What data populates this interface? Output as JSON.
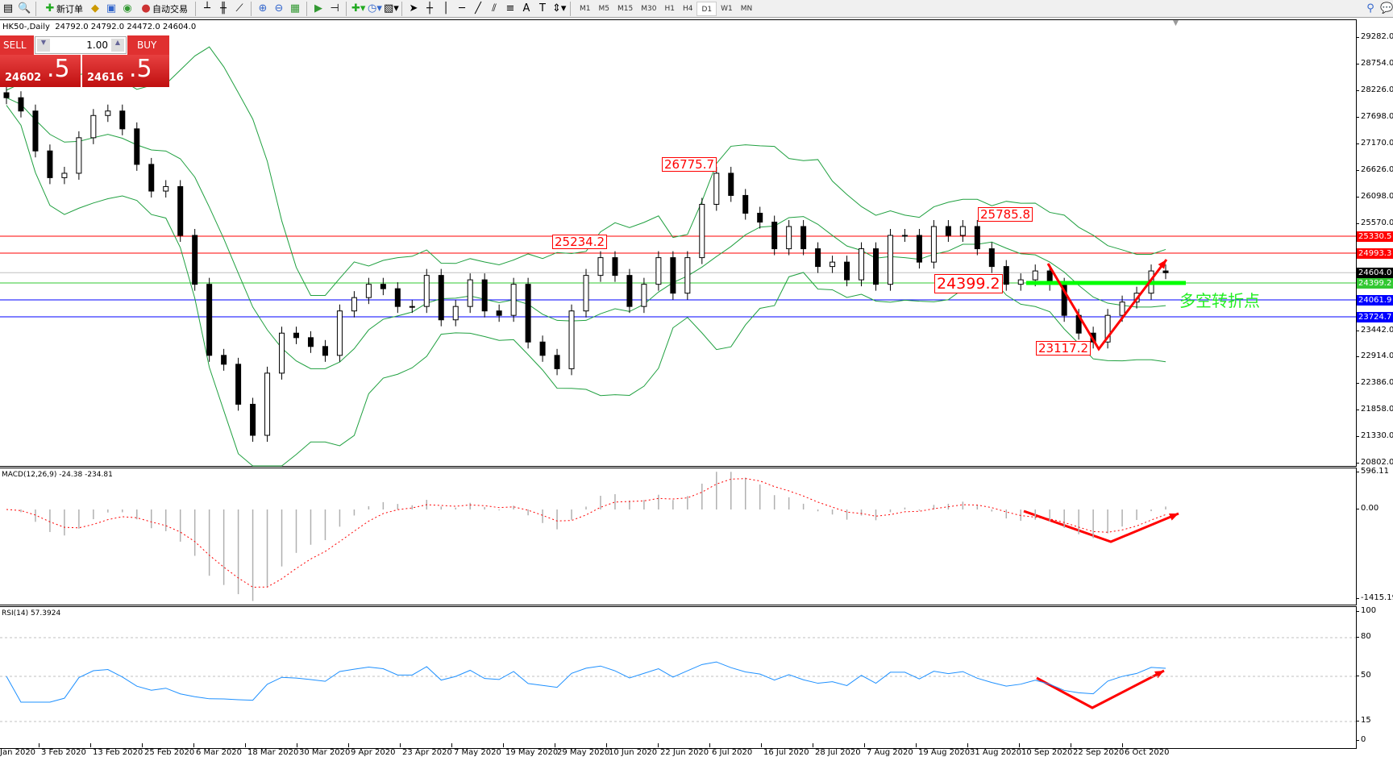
{
  "toolbar": {
    "new_order": "新订单",
    "auto_trade": "自动交易",
    "timeframes": [
      "M1",
      "M5",
      "M15",
      "M30",
      "H1",
      "H4",
      "D1",
      "W1",
      "MN"
    ],
    "active_timeframe": "D1"
  },
  "header": {
    "symbol": "HK50-,Daily",
    "ohlc": "24792.0 24792.0 24472.0 24604.0"
  },
  "trade_panel": {
    "sell_label": "SELL",
    "buy_label": "BUY",
    "lot": "1.00",
    "sell_main": "24602",
    "sell_frac": ".5",
    "buy_main": "24616",
    "buy_frac": ".5"
  },
  "price_axis": [
    "29282.0",
    "28754.0",
    "28226.0",
    "27698.0",
    "27170.0",
    "26626.0",
    "26098.0",
    "25570.0",
    "23442.0",
    "22914.0",
    "22386.0",
    "21858.0",
    "21330.0",
    "20802.0"
  ],
  "price_range": [
    20802,
    29282
  ],
  "hlines": [
    {
      "price": 25330.5,
      "label": "25330.5",
      "color": "#ff0000"
    },
    {
      "price": 24993.3,
      "label": "24993.3",
      "color": "#ff0000"
    },
    {
      "price": 24604.0,
      "label": "24604.0",
      "color": "#000000",
      "line": "#c0c0c0"
    },
    {
      "price": 24399.2,
      "label": "24399.2",
      "color": "#32c832"
    },
    {
      "price": 24061.9,
      "label": "24061.9",
      "color": "#0000ff"
    },
    {
      "price": 23724.7,
      "label": "23724.7",
      "color": "#0000ff"
    }
  ],
  "annotations": {
    "high1": "26775.7",
    "high2": "25785.8",
    "level1": "25234.2",
    "pivot": "24399.2",
    "low": "23117.2",
    "pivot_text": "多空转折点"
  },
  "macd": {
    "label": "MACD(12,26,9) -24.38 -234.81",
    "axis": [
      "596.11",
      "0.00",
      "-1415.19"
    ]
  },
  "rsi": {
    "label": "RSI(14) 57.3924",
    "axis": [
      "100",
      "80",
      "50",
      "15",
      "0"
    ]
  },
  "dates": [
    "Jan 2020",
    "3 Feb 2020",
    "13 Feb 2020",
    "25 Feb 2020",
    "6 Mar 2020",
    "18 Mar 2020",
    "30 Mar 2020",
    "9 Apr 2020",
    "23 Apr 2020",
    "7 May 2020",
    "19 May 2020",
    "29 May 2020",
    "10 Jun 2020",
    "22 Jun 2020",
    "6 Jul 2020",
    "16 Jul 2020",
    "28 Jul 2020",
    "7 Aug 2020",
    "19 Aug 2020",
    "31 Aug 2020",
    "10 Sep 2020",
    "22 Sep 2020",
    "6 Oct 2020"
  ],
  "chart_data": {
    "type": "candlestick",
    "closes": [
      28090,
      27825,
      27030,
      26497,
      26585,
      27293,
      27736,
      27825,
      27470,
      26762,
      26230,
      26320,
      25347,
      24373,
      22957,
      22780,
      21983,
      21364,
      22603,
      23400,
      23310,
      23134,
      22957,
      23842,
      24108,
      24373,
      24285,
      23931,
      23931,
      24550,
      23665,
      23931,
      24462,
      23842,
      23754,
      24373,
      23223,
      22957,
      22691,
      23842,
      24550,
      24904,
      24550,
      23931,
      24373,
      24904,
      24196,
      24904,
      25966,
      26585,
      26143,
      25789,
      25612,
      25081,
      25524,
      25081,
      24727,
      24815,
      24462,
      25081,
      24373,
      25347,
      25347,
      24815,
      25524,
      25347,
      25524,
      25081,
      24727,
      24373,
      24462,
      24639,
      24373,
      23754,
      23400,
      23223,
      23754,
      24019,
      24196,
      24639,
      24604
    ]
  },
  "colors": {
    "bands": "#20a040",
    "signal": "#ff0000",
    "rsi": "#1e90ff",
    "arrows": "#ff0000",
    "pivot_line": "#00ff00"
  }
}
